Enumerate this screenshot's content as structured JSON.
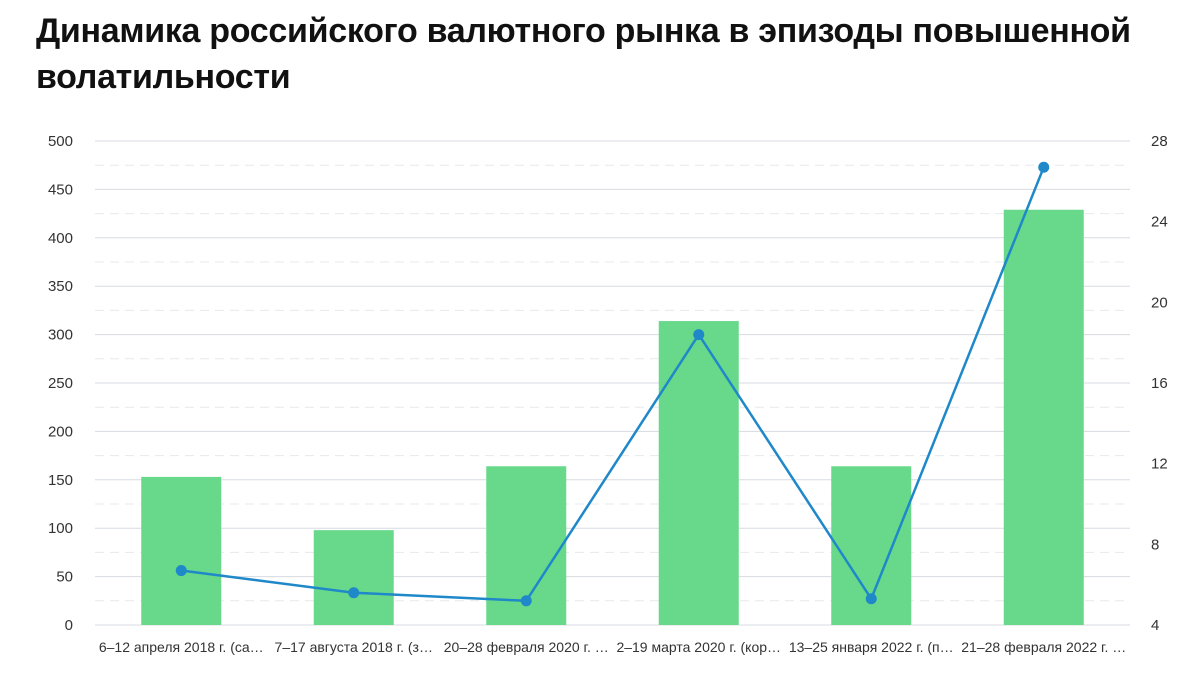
{
  "title": "Динамика российского валютного рынка в эпизоды повышенной волатильности",
  "colors": {
    "bar": "#68d98a",
    "line": "#1f88c9",
    "grid_major": "#d7dbe0",
    "grid_minor": "#e6e9ec"
  },
  "chart_data": {
    "type": "bar",
    "title": "Динамика российского валютного рынка в эпизоды повышенной волатильности",
    "categories": [
      "6–12 апреля 2018 г. (са…",
      "7–17 августа 2018 г. (з…",
      "20–28 февраля 2020 г. …",
      "2–19 марта 2020 г. (кор…",
      "13–25 января 2022 г. (п…",
      "21–28 февраля 2022 г. …"
    ],
    "series": [
      {
        "type": "bar",
        "axis": "left",
        "values": [
          153,
          98,
          164,
          314,
          164,
          429
        ]
      },
      {
        "type": "line",
        "axis": "right",
        "values": [
          6.7,
          5.6,
          5.2,
          18.4,
          5.3,
          26.7
        ]
      }
    ],
    "ylim": [
      0,
      500
    ],
    "y_ticks": [
      0,
      50,
      100,
      150,
      200,
      250,
      300,
      350,
      400,
      450,
      500
    ],
    "y2lim": [
      4,
      28
    ],
    "y2_ticks": [
      4,
      8,
      12,
      16,
      20,
      24,
      28
    ],
    "xlabel": "",
    "ylabel": "",
    "y2label": "",
    "grid": true,
    "legend": "none"
  }
}
